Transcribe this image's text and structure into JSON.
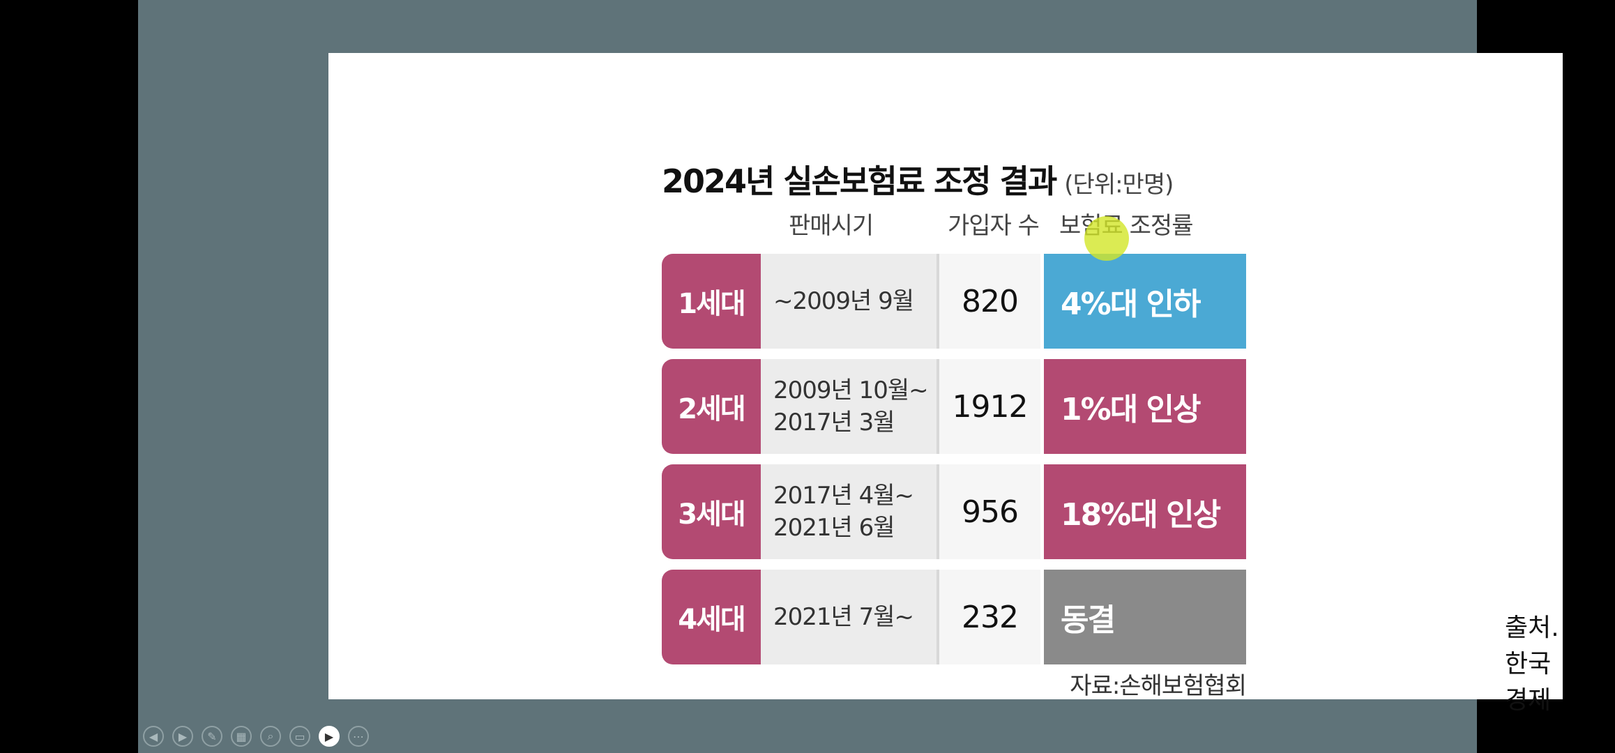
{
  "slide": {
    "title": "2024년 실손보험료 조정 결과",
    "unit": "(단위:만명)",
    "headers": {
      "period": "판매시기",
      "subscribers": "가입자 수",
      "rate": "보험료 조정률"
    },
    "rows": [
      {
        "generation": "1세대",
        "period_line1": "~2009년 9월",
        "period_line2": "",
        "count": "820",
        "rate": "4%대 인하",
        "color": "#4ba9d4"
      },
      {
        "generation": "2세대",
        "period_line1": "2009년 10월~",
        "period_line2": "2017년 3월",
        "count": "1912",
        "rate": "1%대 인상",
        "color": "#b34a72"
      },
      {
        "generation": "3세대",
        "period_line1": "2017년 4월~",
        "period_line2": "2021년 6월",
        "count": "956",
        "rate": "18%대 인상",
        "color": "#b34a72"
      },
      {
        "generation": "4세대",
        "period_line1": "2021년 7월~",
        "period_line2": "",
        "count": "232",
        "rate": "동결",
        "color": "#8a8a8a"
      }
    ],
    "source": "자료:손해보험협회",
    "credit": "출처. 한국경제"
  },
  "toolbar": {
    "buttons": [
      {
        "name": "prev-slide-icon",
        "glyph": "◀"
      },
      {
        "name": "next-slide-icon",
        "glyph": "▶"
      },
      {
        "name": "pen-icon",
        "glyph": "✎"
      },
      {
        "name": "slides-grid-icon",
        "glyph": "▦"
      },
      {
        "name": "zoom-icon",
        "glyph": "⌕"
      },
      {
        "name": "screen-icon",
        "glyph": "▭"
      },
      {
        "name": "camera-icon",
        "glyph": "▶"
      },
      {
        "name": "more-icon",
        "glyph": "⋯"
      }
    ]
  }
}
